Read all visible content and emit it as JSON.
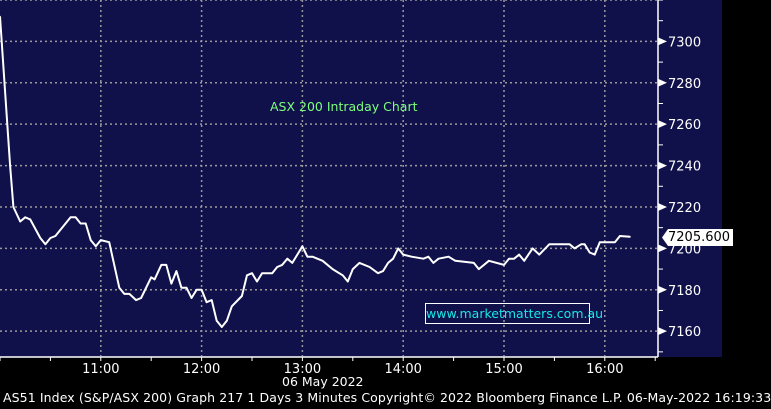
{
  "chart_data": {
    "type": "line",
    "title": "ASX 200 Intraday Chart",
    "watermark": "www.marketmatters.com.au",
    "date_label": "06 May 2022",
    "last_value_label": "7205.600",
    "xlabel": "",
    "ylabel": "",
    "xlim": [
      "10:00",
      "16:32"
    ],
    "ylim": [
      7148,
      7320
    ],
    "x_ticks": [
      "11:00",
      "12:00",
      "13:00",
      "14:00",
      "15:00",
      "16:00"
    ],
    "y_ticks": [
      "7160",
      "7180",
      "7200",
      "7220",
      "7240",
      "7260",
      "7280",
      "7300"
    ],
    "grid": true,
    "colors": {
      "background": "#10104a",
      "line": "#ffffff",
      "title": "#7dff7d",
      "watermark": "#18e8e8",
      "grid": "#9a9a9a"
    },
    "series": [
      {
        "x": [
          "10:00",
          "10:06",
          "10:08",
          "10:12",
          "10:15",
          "10:18",
          "10:24",
          "10:27",
          "10:30",
          "10:33",
          "10:42",
          "10:45",
          "10:48",
          "10:51",
          "10:54",
          "10:57",
          "11:00",
          "11:05",
          "11:11",
          "11:14",
          "11:17",
          "11:21",
          "11:24",
          "11:30",
          "11:32",
          "11:36",
          "11:39",
          "11:42",
          "11:45",
          "11:48",
          "11:51",
          "11:54",
          "11:57",
          "12:00",
          "12:03",
          "12:06",
          "12:09",
          "12:12",
          "12:15",
          "12:18",
          "12:24",
          "12:27",
          "12:30",
          "12:33",
          "12:36",
          "12:42",
          "12:45",
          "12:48",
          "12:51",
          "12:54",
          "13:00",
          "13:03",
          "13:06",
          "13:12",
          "13:18",
          "13:24",
          "13:27",
          "13:30",
          "13:34",
          "13:40",
          "13:45",
          "13:48",
          "13:51",
          "13:54",
          "13:57",
          "14:00",
          "14:05",
          "14:12",
          "14:15",
          "14:18",
          "14:21",
          "14:27",
          "14:31",
          "14:42",
          "14:45",
          "14:51",
          "15:00",
          "15:03",
          "15:06",
          "15:09",
          "15:12",
          "15:17",
          "15:21",
          "15:27",
          "15:33",
          "15:39",
          "15:42",
          "15:46",
          "15:48",
          "15:51",
          "15:54",
          "15:57",
          "16:06",
          "16:09",
          "16:15"
        ],
        "y": [
          7312,
          7240,
          7220,
          7213,
          7215,
          7214,
          7205,
          7202,
          7205,
          7206,
          7215,
          7215,
          7212,
          7212,
          7204,
          7201,
          7204,
          7203,
          7181,
          7178,
          7178,
          7175,
          7176,
          7186,
          7185,
          7192,
          7192,
          7183,
          7189,
          7181,
          7181,
          7176,
          7180,
          7180,
          7174,
          7175,
          7165,
          7162,
          7165,
          7172,
          7177,
          7187,
          7188,
          7184,
          7188,
          7188,
          7191,
          7192,
          7195,
          7193,
          7201,
          7196,
          7196,
          7194,
          7190,
          7187,
          7184,
          7190,
          7193,
          7191,
          7188,
          7189,
          7193,
          7195,
          7200,
          7197,
          7196,
          7195,
          7196,
          7193,
          7195,
          7196,
          7194,
          7193,
          7190,
          7194,
          7192,
          7195,
          7195,
          7197,
          7194,
          7200,
          7197,
          7202,
          7202,
          7202,
          7200,
          7202,
          7202,
          7198,
          7197,
          7203,
          7203,
          7206,
          7205.6
        ]
      }
    ]
  },
  "footer": "AS51 Index (S&P/ASX 200) Graph 217 1 Days 3 Minutes Copyright© 2022 Bloomberg Finance L.P. 06-May-2022 16:19:33"
}
